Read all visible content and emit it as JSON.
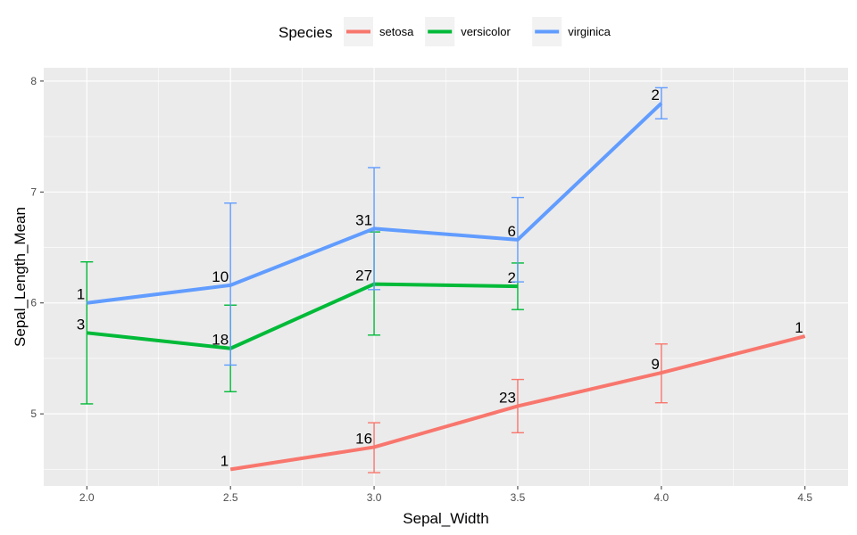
{
  "chart_data": {
    "type": "line",
    "xlabel": "Sepal_Width",
    "ylabel": "Sepal_Length_Mean",
    "xlim": [
      1.85,
      4.65
    ],
    "ylim": [
      4.35,
      8.12
    ],
    "x_ticks": [
      2.0,
      2.5,
      3.0,
      3.5,
      4.0,
      4.5
    ],
    "x_tick_labels": [
      "2.0",
      "2.5",
      "3.0",
      "3.5",
      "4.0",
      "4.5"
    ],
    "y_ticks": [
      5,
      6,
      7,
      8
    ],
    "y_tick_labels": [
      "5",
      "6",
      "7",
      "8"
    ],
    "grid": true,
    "legend": {
      "title": "Species",
      "position": "top"
    },
    "series": [
      {
        "name": "setosa",
        "color": "#F8766D",
        "points": [
          {
            "x": 2.5,
            "y": 4.5,
            "n": "1",
            "lo": null,
            "hi": null
          },
          {
            "x": 3.0,
            "y": 4.7,
            "n": "16",
            "lo": 4.47,
            "hi": 4.92
          },
          {
            "x": 3.5,
            "y": 5.07,
            "n": "23",
            "lo": 4.83,
            "hi": 5.31
          },
          {
            "x": 4.0,
            "y": 5.37,
            "n": "9",
            "lo": 5.1,
            "hi": 5.63
          },
          {
            "x": 4.5,
            "y": 5.7,
            "n": "1",
            "lo": null,
            "hi": null
          }
        ]
      },
      {
        "name": "versicolor",
        "color": "#00BA38",
        "points": [
          {
            "x": 2.0,
            "y": 5.73,
            "n": "3",
            "lo": 5.09,
            "hi": 6.37
          },
          {
            "x": 2.5,
            "y": 5.59,
            "n": "18",
            "lo": 5.2,
            "hi": 5.98
          },
          {
            "x": 3.0,
            "y": 6.17,
            "n": "27",
            "lo": 5.71,
            "hi": 6.64
          },
          {
            "x": 3.5,
            "y": 6.15,
            "n": "2",
            "lo": 5.94,
            "hi": 6.36
          }
        ]
      },
      {
        "name": "virginica",
        "color": "#619CFF",
        "points": [
          {
            "x": 2.0,
            "y": 6.0,
            "n": "1",
            "lo": null,
            "hi": null
          },
          {
            "x": 2.5,
            "y": 6.16,
            "n": "10",
            "lo": 5.44,
            "hi": 6.9
          },
          {
            "x": 3.0,
            "y": 6.67,
            "n": "31",
            "lo": 6.12,
            "hi": 7.22
          },
          {
            "x": 3.5,
            "y": 6.57,
            "n": "6",
            "lo": 6.19,
            "hi": 6.95
          },
          {
            "x": 4.0,
            "y": 7.8,
            "n": "2",
            "lo": 7.66,
            "hi": 7.94
          }
        ]
      }
    ]
  }
}
